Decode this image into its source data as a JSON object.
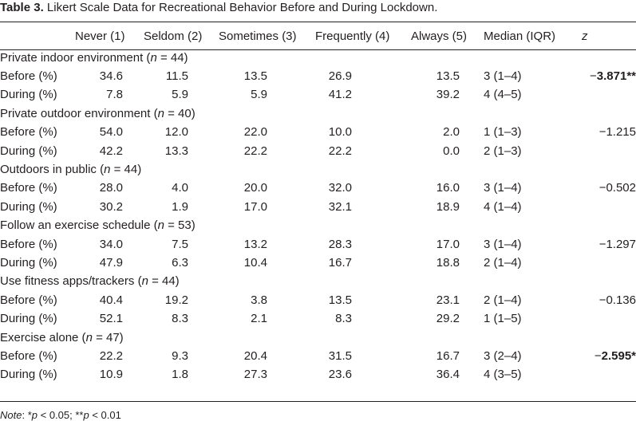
{
  "caption": {
    "label": "Table 3.",
    "text": "Likert Scale Data for Recreational Behavior Before and During Lockdown."
  },
  "header": {
    "never": "Never (1)",
    "seldom": "Seldom (2)",
    "sometimes": "Sometimes (3)",
    "frequently": "Frequently (4)",
    "always": "Always (5)",
    "median": "Median (IQR)",
    "z": "z"
  },
  "groups": [
    {
      "title": "Private indoor environment (",
      "n_label": "n",
      "n_value": " = 44)",
      "before": {
        "label": "Before (%)",
        "never": "34.6",
        "seldom": "11.5",
        "sometimes": "13.5",
        "frequently": "26.9",
        "always": "13.5",
        "median": "3 (1–4)"
      },
      "during": {
        "label": "During (%)",
        "never": "7.8",
        "seldom": "5.9",
        "sometimes": "5.9",
        "frequently": "41.2",
        "always": "39.2",
        "median": "4 (4–5)"
      },
      "z_minus": "−",
      "z_value": "3.871**",
      "z_bold": true
    },
    {
      "title": "Private outdoor environment (",
      "n_label": "n",
      "n_value": " = 40)",
      "before": {
        "label": "Before (%)",
        "never": "54.0",
        "seldom": "12.0",
        "sometimes": "22.0",
        "frequently": "10.0",
        "always": "2.0",
        "median": "1 (1–3)"
      },
      "during": {
        "label": "During (%)",
        "never": "42.2",
        "seldom": "13.3",
        "sometimes": "22.2",
        "frequently": "22.2",
        "always": "0.0",
        "median": "2 (1–3)"
      },
      "z_minus": "−",
      "z_value": "1.215",
      "z_bold": false
    },
    {
      "title": "Outdoors in public (",
      "n_label": "n",
      "n_value": " = 44)",
      "before": {
        "label": "Before (%)",
        "never": "28.0",
        "seldom": "4.0",
        "sometimes": "20.0",
        "frequently": "32.0",
        "always": "16.0",
        "median": "3 (1–4)"
      },
      "during": {
        "label": "During (%)",
        "never": "30.2",
        "seldom": "1.9",
        "sometimes": "17.0",
        "frequently": "32.1",
        "always": "18.9",
        "median": "4 (1–4)"
      },
      "z_minus": "−",
      "z_value": "0.502",
      "z_bold": false
    },
    {
      "title": "Follow an exercise schedule (",
      "n_label": "n",
      "n_value": " = 53)",
      "before": {
        "label": "Before (%)",
        "never": "34.0",
        "seldom": "7.5",
        "sometimes": "13.2",
        "frequently": "28.3",
        "always": "17.0",
        "median": "3 (1–4)"
      },
      "during": {
        "label": "During (%)",
        "never": "47.9",
        "seldom": "6.3",
        "sometimes": "10.4",
        "frequently": "16.7",
        "always": "18.8",
        "median": "2 (1–4)"
      },
      "z_minus": "−",
      "z_value": "1.297",
      "z_bold": false
    },
    {
      "title": "Use fitness apps/trackers (",
      "n_label": "n",
      "n_value": " = 44)",
      "before": {
        "label": "Before (%)",
        "never": "40.4",
        "seldom": "19.2",
        "sometimes": "3.8",
        "frequently": "13.5",
        "always": "23.1",
        "median": "2 (1–4)"
      },
      "during": {
        "label": "During (%)",
        "never": "52.1",
        "seldom": "8.3",
        "sometimes": "2.1",
        "frequently": "8.3",
        "always": "29.2",
        "median": "1 (1–5)"
      },
      "z_minus": "−",
      "z_value": "0.136",
      "z_bold": false
    },
    {
      "title": "Exercise alone (",
      "n_label": "n",
      "n_value": " = 47)",
      "before": {
        "label": "Before (%)",
        "never": "22.2",
        "seldom": "9.3",
        "sometimes": "20.4",
        "frequently": "31.5",
        "always": "16.7",
        "median": "3 (2–4)"
      },
      "during": {
        "label": "During (%)",
        "never": "10.9",
        "seldom": "1.8",
        "sometimes": "27.3",
        "frequently": "23.6",
        "always": "36.4",
        "median": "4 (3–5)"
      },
      "z_minus": "−",
      "z_value": "2.595*",
      "z_bold": true
    }
  ],
  "note": {
    "label": "Note",
    "sep": ": ",
    "star1": "*",
    "p1": "p",
    "t1": " < 0.05; ",
    "star2": "**",
    "p2": "p",
    "t2": " < 0.01"
  }
}
